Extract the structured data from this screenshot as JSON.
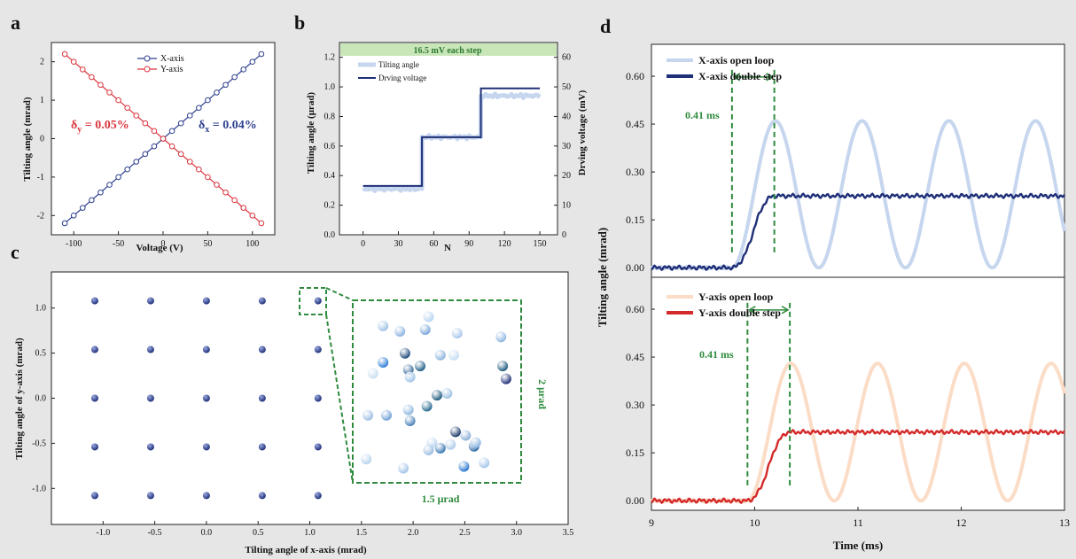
{
  "panel_labels": [
    "a",
    "b",
    "c",
    "d"
  ],
  "colors": {
    "blue": "#2e3f8f",
    "red": "#d9363e",
    "green": "#2e8b3d",
    "light_blue": "#c6d6ee",
    "light_orange": "#fbdcc6",
    "dark_red": "#d42a2a",
    "navy": "#1f2f78",
    "step_green": "#c9e6b8"
  },
  "chart_data": [
    {
      "id": "a",
      "type": "line",
      "xlabel": "Voltage (V)",
      "ylabel": "Tilting angle (mrad)",
      "xlim": [
        -125,
        125
      ],
      "ylim": [
        -2.5,
        2.5
      ],
      "xticks": [
        -100,
        -50,
        0,
        50,
        100
      ],
      "yticks": [
        -2,
        -1,
        0,
        1,
        2
      ],
      "x": [
        -110,
        -100,
        -90,
        -80,
        -70,
        -60,
        -50,
        -40,
        -30,
        -20,
        -10,
        0,
        10,
        20,
        30,
        40,
        50,
        60,
        70,
        80,
        90,
        100,
        110
      ],
      "series": [
        {
          "name": "X-axis",
          "slope": 0.02,
          "marker": "circle"
        },
        {
          "name": "Y-axis",
          "slope": -0.02,
          "marker": "circle"
        }
      ],
      "legend": [
        "X-axis",
        "Y-axis"
      ],
      "annotations": {
        "delta_y": "δ",
        "delta_y_sub": "y",
        "delta_y_val": " = 0.05%",
        "delta_x": "δ",
        "delta_x_sub": "x",
        "delta_x_val": " = 0.04%"
      }
    },
    {
      "id": "b",
      "type": "line",
      "xlabel": "N",
      "ylabel": "Tilting angle (μrad)",
      "ylabel_right": "Drving voltage (mV)",
      "banner": "16.5 mV each step",
      "xlim": [
        -20,
        165
      ],
      "ylim": [
        0,
        1.3
      ],
      "ylim_right": [
        0,
        65
      ],
      "xticks": [
        0,
        30,
        60,
        90,
        120,
        150
      ],
      "yticks": [
        0.0,
        0.2,
        0.4,
        0.6,
        0.8,
        1.0,
        1.2
      ],
      "yticks_right": [
        0,
        10,
        20,
        30,
        40,
        50,
        60
      ],
      "legend": [
        "Tilting angle",
        "Drving voltage"
      ],
      "tilting_levels": [
        {
          "from": 0,
          "to": 50,
          "value": 0.31
        },
        {
          "from": 50,
          "to": 100,
          "value": 0.66
        },
        {
          "from": 100,
          "to": 150,
          "value": 0.94
        }
      ],
      "voltage_levels": [
        {
          "from": 0,
          "to": 50,
          "value": 16.5
        },
        {
          "from": 50,
          "to": 100,
          "value": 33
        },
        {
          "from": 100,
          "to": 150,
          "value": 49.5
        }
      ]
    },
    {
      "id": "c",
      "type": "scatter",
      "xlabel": "Tilting angle of x-axis (mrad)",
      "ylabel": "Tilting angle of y-axis (mrad)",
      "xlim": [
        -1.5,
        3.5
      ],
      "ylim": [
        -1.4,
        1.4
      ],
      "xticks": [
        -1.0,
        -0.5,
        0.0,
        0.5,
        1.0,
        1.5,
        2.0,
        2.5,
        3.0,
        3.5
      ],
      "yticks": [
        -1.0,
        -0.5,
        0.0,
        0.5,
        1.0
      ],
      "grid_x": [
        -1.08,
        -0.54,
        0.0,
        0.54,
        1.08
      ],
      "grid_y": [
        -1.08,
        -0.54,
        0.0,
        0.54,
        1.08
      ],
      "inset_label_x": "1.5 μrad",
      "inset_label_y": "2 μrad",
      "inset_points": [
        {
          "x": 0.18,
          "y": 0.86,
          "c": "#9fc2e6"
        },
        {
          "x": 0.28,
          "y": 0.83,
          "c": "#8ab4e0"
        },
        {
          "x": 0.45,
          "y": 0.91,
          "c": "#b7d4f0"
        },
        {
          "x": 0.43,
          "y": 0.84,
          "c": "#7aa8d8"
        },
        {
          "x": 0.62,
          "y": 0.82,
          "c": "#a8c8ea"
        },
        {
          "x": 0.88,
          "y": 0.8,
          "c": "#8fb8e2"
        },
        {
          "x": 0.31,
          "y": 0.71,
          "c": "#1e4a7a"
        },
        {
          "x": 0.52,
          "y": 0.7,
          "c": "#8cb4dc"
        },
        {
          "x": 0.18,
          "y": 0.66,
          "c": "#2b7bd6"
        },
        {
          "x": 0.4,
          "y": 0.64,
          "c": "#1f5f86"
        },
        {
          "x": 0.6,
          "y": 0.7,
          "c": "#c4dcf2"
        },
        {
          "x": 0.33,
          "y": 0.62,
          "c": "#3a6a9a"
        },
        {
          "x": 0.89,
          "y": 0.64,
          "c": "#1e5a7e"
        },
        {
          "x": 0.91,
          "y": 0.57,
          "c": "#1f2f78"
        },
        {
          "x": 0.34,
          "y": 0.58,
          "c": "#a0c4e8"
        },
        {
          "x": 0.12,
          "y": 0.6,
          "c": "#c8def2"
        },
        {
          "x": 0.5,
          "y": 0.48,
          "c": "#1e5a7e"
        },
        {
          "x": 0.56,
          "y": 0.49,
          "c": "#9cc0e4"
        },
        {
          "x": 0.44,
          "y": 0.42,
          "c": "#2a6a90"
        },
        {
          "x": 0.33,
          "y": 0.4,
          "c": "#8fb8e0"
        },
        {
          "x": 0.09,
          "y": 0.37,
          "c": "#9ebee4"
        },
        {
          "x": 0.2,
          "y": 0.37,
          "c": "#6f9fd6"
        },
        {
          "x": 0.34,
          "y": 0.34,
          "c": "#4a80b8"
        },
        {
          "x": 0.61,
          "y": 0.28,
          "c": "#1a3a6a"
        },
        {
          "x": 0.67,
          "y": 0.26,
          "c": "#8ab0d8"
        },
        {
          "x": 0.47,
          "y": 0.22,
          "c": "#c0d8f0"
        },
        {
          "x": 0.52,
          "y": 0.19,
          "c": "#3a78b4"
        },
        {
          "x": 0.58,
          "y": 0.21,
          "c": "#b0cce8"
        },
        {
          "x": 0.72,
          "y": 0.2,
          "c": "#2f6aa6"
        },
        {
          "x": 0.73,
          "y": 0.22,
          "c": "#8cb6e2"
        },
        {
          "x": 0.66,
          "y": 0.09,
          "c": "#2a78d0"
        },
        {
          "x": 0.78,
          "y": 0.11,
          "c": "#a6c6ea"
        },
        {
          "x": 0.08,
          "y": 0.13,
          "c": "#b8d4ee"
        },
        {
          "x": 0.3,
          "y": 0.08,
          "c": "#a4c4e8"
        },
        {
          "x": 0.45,
          "y": 0.18,
          "c": "#9abce0"
        }
      ]
    },
    {
      "id": "d",
      "type": "line",
      "xlabel": "Time (ms)",
      "ylabel": "Tilting angle (mrad)",
      "xlim": [
        9,
        13
      ],
      "xticks": [
        9,
        10,
        11,
        12,
        13
      ],
      "top": {
        "ylim": [
          -0.03,
          0.7
        ],
        "yticks": [
          0.0,
          0.15,
          0.3,
          0.45,
          0.6
        ],
        "ytick_labels": [
          "0.00",
          "0.15",
          "0.30",
          "0.45",
          "0.60"
        ],
        "legend": [
          "X-axis open loop",
          "X-axis double step"
        ],
        "annotation": "0.41 ms",
        "t_start": 9.78,
        "t_end": 10.19,
        "open_amplitude": 0.23,
        "open_period_ms": 0.84,
        "step_value": 0.225
      },
      "bottom": {
        "ylim": [
          -0.03,
          0.7
        ],
        "yticks": [
          0.0,
          0.15,
          0.3,
          0.45,
          0.6
        ],
        "ytick_labels": [
          "0.00",
          "0.15",
          "0.30",
          "0.45",
          "0.60"
        ],
        "legend": [
          "Y-axis open loop",
          "Y-axis double step"
        ],
        "annotation": "0.41 ms",
        "t_start": 9.93,
        "t_end": 10.34,
        "open_amplitude": 0.215,
        "open_period_ms": 0.84,
        "step_value": 0.215
      }
    }
  ]
}
